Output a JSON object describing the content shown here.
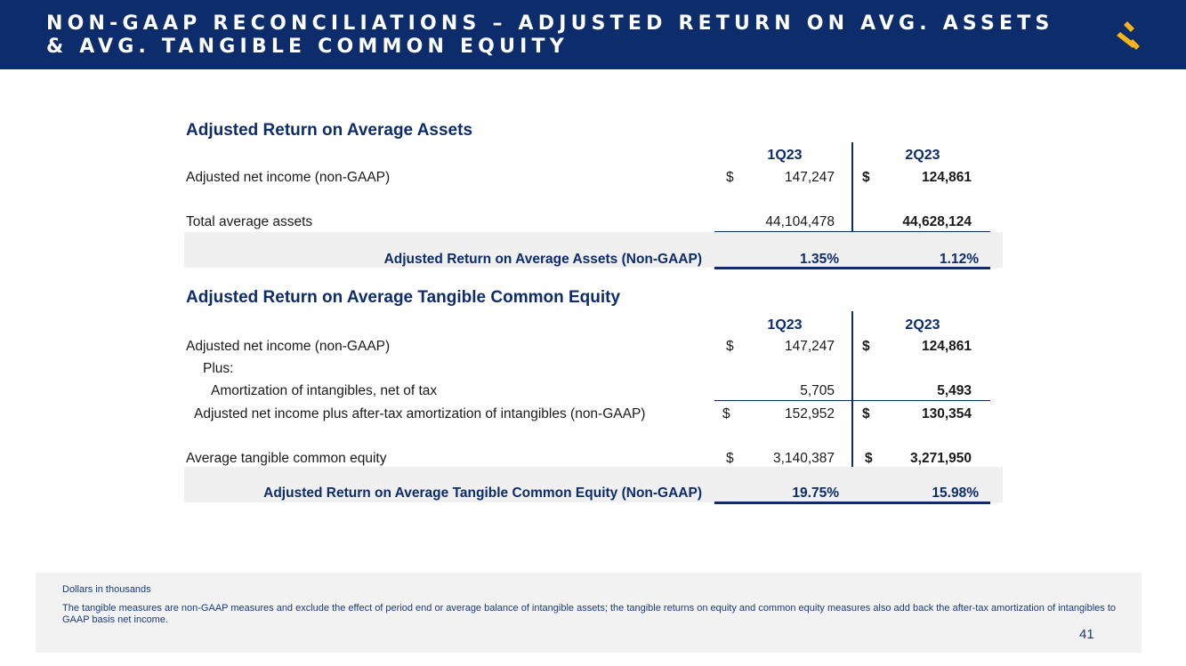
{
  "header": {
    "title_line1": "NON-GAAP RECONCILIATIONS – ADJUSTED RETURN ON AVG. ASSETS",
    "title_line2": "& AVG. TANGIBLE COMMON EQUITY",
    "logo_icon": "brand-s-logo-icon"
  },
  "colors": {
    "navy": "#0d2c6c",
    "gold": "#f4b41a",
    "shade": "#f0f0f0"
  },
  "table1": {
    "title": "Adjusted Return on Average Assets",
    "col1": "1Q23",
    "col2": "2Q23",
    "rows": [
      {
        "label": "Adjusted net income (non-GAAP)",
        "cur1": "$",
        "v1": "147,247",
        "cur2": "$",
        "v2": "124,861"
      },
      {
        "label": "Total average assets",
        "v1": "44,104,478",
        "v2": "44,628,124"
      }
    ],
    "total": {
      "label": "Adjusted Return on Average Assets (Non-GAAP)",
      "v1": "1.35%",
      "v2": "1.12%"
    }
  },
  "table2": {
    "title": "Adjusted Return on Average Tangible Common Equity",
    "col1": "1Q23",
    "col2": "2Q23",
    "rows": [
      {
        "label": "Adjusted net income (non-GAAP)",
        "cur1": "$",
        "v1": "147,247",
        "cur2": "$",
        "v2": "124,861"
      },
      {
        "label": "Plus:"
      },
      {
        "label": "Amortization of intangibles, net of tax",
        "v1": "5,705",
        "v2": "5,493"
      },
      {
        "label": "Adjusted net income plus after-tax amortization of intangibles (non-GAAP)",
        "cur1": "$",
        "v1": "152,952",
        "cur2": "$",
        "v2": "130,354"
      },
      {
        "label": "Average tangible common equity",
        "cur1": "$",
        "v1": "3,140,387",
        "cur2": "$",
        "v2": "3,271,950"
      }
    ],
    "total": {
      "label": "Adjusted Return on Average Tangible Common Equity (Non-GAAP)",
      "v1": "19.75%",
      "v2": "15.98%"
    }
  },
  "footer": {
    "line1": "Dollars in thousands",
    "line2": "The tangible measures are non-GAAP measures and exclude the effect of period end or average balance of intangible assets; the tangible returns on equity and common equity measures also add back the after-tax amortization of intangibles to GAAP basis net income.",
    "page": "41"
  }
}
